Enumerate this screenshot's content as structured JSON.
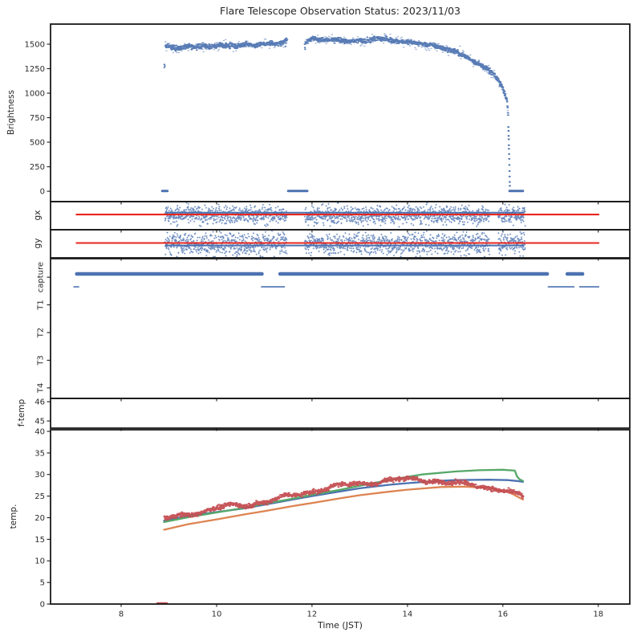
{
  "chart_data": {
    "type": "scatter",
    "title": "Flare Telescope Observation Status: 2023/11/03",
    "xlabel": "Time (JST)",
    "xlim": [
      6.52,
      18.66
    ],
    "xticks": [
      8,
      10,
      12,
      14,
      16,
      18
    ],
    "grid": false,
    "palette": {
      "blue": "#4C72B0",
      "green": "#55A868",
      "red": "#C44E52",
      "orange": "#DD8452",
      "bright_red": "#E8261D",
      "axis": "#1a1a1a",
      "text": "#2b2b2b"
    },
    "panels": [
      {
        "id": "brightness",
        "ylabel": "Brightness",
        "ylim": [
          -106,
          1705
        ],
        "yticks": [
          0,
          250,
          500,
          750,
          1000,
          1250,
          1500
        ],
        "band_jitter": 12,
        "band_segments": [
          [
            [
              8.92,
              1468
            ],
            [
              9.0,
              1480
            ],
            [
              9.08,
              1466
            ],
            [
              9.18,
              1460
            ],
            [
              9.3,
              1472
            ],
            [
              9.42,
              1482
            ],
            [
              9.52,
              1470
            ],
            [
              9.62,
              1478
            ],
            [
              9.72,
              1488
            ],
            [
              9.82,
              1476
            ],
            [
              9.92,
              1470
            ],
            [
              10.02,
              1486
            ],
            [
              10.12,
              1496
            ],
            [
              10.22,
              1482
            ],
            [
              10.32,
              1490
            ],
            [
              10.42,
              1480
            ],
            [
              10.52,
              1494
            ],
            [
              10.62,
              1504
            ],
            [
              10.72,
              1492
            ],
            [
              10.82,
              1486
            ],
            [
              10.92,
              1497
            ],
            [
              11.02,
              1504
            ],
            [
              11.12,
              1512
            ],
            [
              11.22,
              1498
            ],
            [
              11.32,
              1508
            ],
            [
              11.4,
              1518
            ],
            [
              11.47,
              1545
            ]
          ],
          [
            [
              11.85,
              1525
            ],
            [
              11.92,
              1542
            ],
            [
              12.0,
              1552
            ],
            [
              12.1,
              1556
            ],
            [
              12.2,
              1544
            ],
            [
              12.3,
              1534
            ],
            [
              12.4,
              1544
            ],
            [
              12.5,
              1550
            ],
            [
              12.6,
              1538
            ],
            [
              12.7,
              1530
            ],
            [
              12.8,
              1526
            ],
            [
              12.9,
              1538
            ],
            [
              13.0,
              1544
            ],
            [
              13.1,
              1532
            ],
            [
              13.2,
              1540
            ],
            [
              13.3,
              1552
            ],
            [
              13.4,
              1560
            ],
            [
              13.5,
              1554
            ],
            [
              13.6,
              1544
            ],
            [
              13.7,
              1538
            ],
            [
              13.8,
              1532
            ],
            [
              13.9,
              1526
            ],
            [
              14.0,
              1521
            ],
            [
              14.1,
              1516
            ],
            [
              14.2,
              1510
            ],
            [
              14.3,
              1504
            ],
            [
              14.4,
              1497
            ],
            [
              14.5,
              1489
            ],
            [
              14.6,
              1480
            ],
            [
              14.7,
              1463
            ],
            [
              14.8,
              1450
            ],
            [
              14.9,
              1440
            ],
            [
              15.0,
              1424
            ],
            [
              15.1,
              1400
            ],
            [
              15.2,
              1376
            ],
            [
              15.3,
              1348
            ],
            [
              15.35,
              1336
            ],
            [
              15.4,
              1322
            ],
            [
              15.5,
              1295
            ],
            [
              15.55,
              1283
            ],
            [
              15.6,
              1266
            ],
            [
              15.65,
              1250
            ],
            [
              15.7,
              1232
            ],
            [
              15.75,
              1213
            ],
            [
              15.8,
              1188
            ],
            [
              15.85,
              1158
            ],
            [
              15.9,
              1126
            ],
            [
              15.95,
              1090
            ],
            [
              16.0,
              1040
            ],
            [
              16.03,
              1000
            ],
            [
              16.06,
              950
            ],
            [
              16.08,
              900
            ],
            [
              16.09,
              860
            ],
            [
              16.1,
              790
            ],
            [
              16.105,
              710
            ]
          ]
        ],
        "zero_value": 2,
        "zero_segments": [
          [
            8.86,
            8.97
          ],
          [
            11.5,
            11.9
          ],
          [
            16.14,
            16.42
          ]
        ],
        "drop_points": [
          [
            16.11,
            655
          ],
          [
            16.112,
            615
          ],
          [
            16.115,
            565
          ],
          [
            16.117,
            530
          ],
          [
            16.12,
            470
          ],
          [
            16.12,
            432
          ],
          [
            16.124,
            380
          ],
          [
            16.127,
            330
          ],
          [
            16.13,
            268
          ],
          [
            16.132,
            205
          ],
          [
            16.135,
            150
          ],
          [
            16.137,
            95
          ],
          [
            16.14,
            55
          ]
        ],
        "outlier_points": [
          [
            8.9,
            1293
          ],
          [
            8.9,
            1262
          ],
          [
            8.91,
            1278
          ],
          [
            11.44,
            1478
          ],
          [
            11.45,
            1560
          ],
          [
            11.84,
            1500
          ],
          [
            11.845,
            1465
          ],
          [
            11.85,
            1448
          ]
        ]
      },
      {
        "id": "gx",
        "ylabel": "gx",
        "ylim": [
          -1,
          1
        ],
        "scatter_segments": [
          [
            8.92,
            11.47
          ],
          [
            11.85,
            15.72
          ],
          [
            15.9,
            16.47
          ]
        ],
        "scatter_mean": 0.05,
        "scatter_sigma": 0.32,
        "blue_line": {
          "value": 0.22,
          "t": [
            8.92,
            16.45
          ]
        },
        "red_line": {
          "value": 0.08,
          "t": [
            7.05,
            18.02
          ]
        }
      },
      {
        "id": "gy",
        "ylabel": "gy",
        "ylim": [
          -1,
          1
        ],
        "scatter_segments": [
          [
            8.92,
            11.47
          ],
          [
            11.85,
            15.72
          ],
          [
            15.9,
            16.47
          ]
        ],
        "scatter_mean": 0.0,
        "scatter_sigma": 0.38,
        "blue_line": {
          "value": -0.12,
          "t": [
            8.92,
            16.45
          ]
        },
        "red_line": {
          "value": 0.06,
          "t": [
            7.05,
            18.02
          ]
        }
      },
      {
        "id": "capture",
        "ylim": [
          -0.38,
          4.67
        ],
        "ytick_values": [
          4,
          3,
          2,
          1,
          0
        ],
        "ytick_labels": [
          "capture",
          "T1",
          "T2",
          "T3",
          "T4"
        ],
        "yticks_rotated": true,
        "thick_value": 4.12,
        "thick_segments": [
          [
            7.07,
            10.95
          ],
          [
            11.33,
            16.93
          ],
          [
            17.35,
            17.67
          ]
        ],
        "thin_value": 3.65,
        "thin_segments": [
          [
            7.0,
            7.12
          ],
          [
            10.93,
            11.43
          ],
          [
            16.94,
            17.5
          ],
          [
            17.6,
            18.02
          ]
        ]
      },
      {
        "id": "ftemp",
        "ylabel": "f-temp",
        "ylim": [
          44.63,
          46.17
        ],
        "yticks": [
          46,
          45
        ]
      },
      {
        "id": "temp",
        "ylabel": "temp.",
        "ylim": [
          0,
          40.37
        ],
        "yticks": [
          0,
          5,
          10,
          15,
          20,
          25,
          30,
          35,
          40
        ],
        "series": [
          {
            "name": "blue",
            "color_key": "blue",
            "style": "line",
            "points": [
              [
                8.9,
                19.3
              ],
              [
                9.4,
                20.4
              ],
              [
                10,
                21.3
              ],
              [
                10.6,
                22.2
              ],
              [
                11,
                23.0
              ],
              [
                11.6,
                24.2
              ],
              [
                12,
                25.0
              ],
              [
                12.6,
                26.1
              ],
              [
                13,
                26.8
              ],
              [
                13.6,
                27.6
              ],
              [
                14,
                28.0
              ],
              [
                14.6,
                28.5
              ],
              [
                15,
                28.7
              ],
              [
                15.7,
                28.8
              ],
              [
                16.1,
                28.7
              ],
              [
                16.3,
                28.5
              ],
              [
                16.42,
                28.3
              ]
            ]
          },
          {
            "name": "orange",
            "color_key": "orange",
            "style": "line",
            "points": [
              [
                8.9,
                17.2
              ],
              [
                9.4,
                18.5
              ],
              [
                10,
                19.6
              ],
              [
                10.6,
                20.8
              ],
              [
                11,
                21.5
              ],
              [
                11.6,
                22.7
              ],
              [
                12,
                23.4
              ],
              [
                12.6,
                24.5
              ],
              [
                13,
                25.2
              ],
              [
                13.6,
                26.0
              ],
              [
                14,
                26.5
              ],
              [
                14.7,
                27.1
              ],
              [
                15.2,
                27.2
              ],
              [
                15.7,
                26.9
              ],
              [
                16,
                26.3
              ],
              [
                16.2,
                25.5
              ],
              [
                16.42,
                24.2
              ]
            ]
          },
          {
            "name": "green",
            "color_key": "green",
            "style": "line",
            "points": [
              [
                8.9,
                19.0
              ],
              [
                9.4,
                20.1
              ],
              [
                10,
                21.2
              ],
              [
                10.6,
                22.3
              ],
              [
                11,
                23.2
              ],
              [
                11.6,
                24.4
              ],
              [
                12,
                25.3
              ],
              [
                12.6,
                26.5
              ],
              [
                13,
                27.4
              ],
              [
                13.7,
                28.9
              ],
              [
                14.3,
                30.0
              ],
              [
                15,
                30.7
              ],
              [
                15.5,
                31.0
              ],
              [
                16.0,
                31.1
              ],
              [
                16.25,
                30.9
              ],
              [
                16.3,
                29.5
              ],
              [
                16.35,
                28.9
              ],
              [
                16.42,
                28.5
              ]
            ]
          },
          {
            "name": "red",
            "color_key": "red",
            "style": "noisy",
            "noise": 0.25,
            "points": [
              [
                8.9,
                19.6
              ],
              [
                9.3,
                20.7
              ],
              [
                9.6,
                21.3
              ],
              [
                9.9,
                21.9
              ],
              [
                10.2,
                22.6
              ],
              [
                10.5,
                22.9
              ],
              [
                11,
                23.7
              ],
              [
                11.5,
                24.9
              ],
              [
                12,
                26.2
              ],
              [
                12.5,
                27.2
              ],
              [
                13,
                28.0
              ],
              [
                13.5,
                28.5
              ],
              [
                14,
                28.9
              ],
              [
                14.4,
                28.8
              ],
              [
                14.8,
                28.2
              ],
              [
                15.2,
                27.7
              ],
              [
                15.6,
                27.3
              ],
              [
                16,
                26.4
              ],
              [
                16.2,
                25.6
              ],
              [
                16.42,
                24.7
              ]
            ]
          }
        ],
        "zero_segment": {
          "t": [
            8.76,
            8.96
          ],
          "value": 0.18,
          "color_key": "red"
        }
      }
    ]
  }
}
